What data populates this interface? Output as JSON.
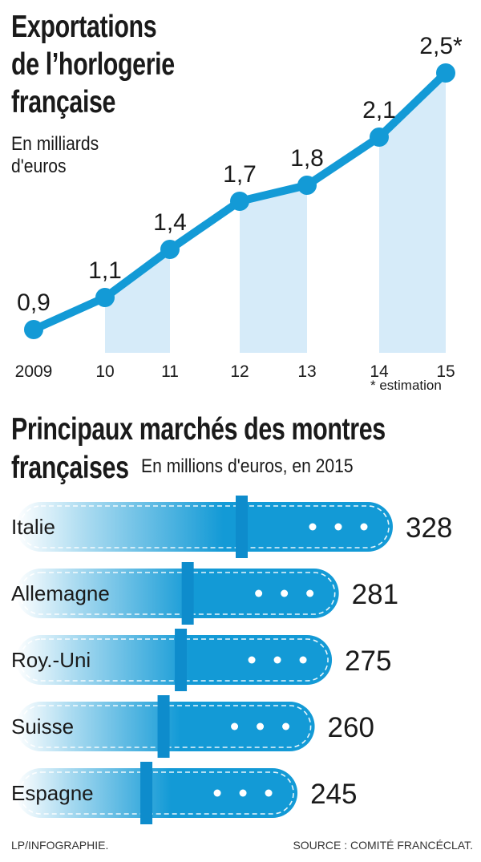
{
  "chart_data": [
    {
      "type": "line",
      "title": "Exportations de l’horlogerie française",
      "title_lines": [
        "Exportations",
        "de l’horlogerie",
        "française"
      ],
      "subtitle": "En milliards d'euros",
      "subtitle_lines": [
        "En milliards",
        "d'euros"
      ],
      "categories": [
        "2009",
        "10",
        "11",
        "12",
        "13",
        "14",
        "15"
      ],
      "values": [
        0.9,
        1.1,
        1.4,
        1.7,
        1.8,
        2.1,
        2.5
      ],
      "value_labels": [
        "0,9",
        "1,1",
        "1,4",
        "1,7",
        "1,8",
        "2,1",
        "2,5*"
      ],
      "note": "* estimation",
      "colors": {
        "line": "#139ad6",
        "fill": "#d6ebf9"
      }
    },
    {
      "type": "bar",
      "title": "Principaux marchés des montres françaises",
      "title_lines": [
        "Principaux marchés des montres",
        "françaises"
      ],
      "subtitle": "En millions d'euros, en 2015",
      "categories": [
        "Italie",
        "Allemagne",
        "Roy.-Uni",
        "Suisse",
        "Espagne"
      ],
      "values": [
        328,
        281,
        275,
        260,
        245
      ],
      "value_labels": [
        "328",
        "281",
        "275",
        "260",
        "245"
      ],
      "colors": {
        "bar": "#139ad6",
        "strap_dark": "#0e8ccc"
      }
    }
  ],
  "footer": {
    "credit": "LP/INFOGRAPHIE.",
    "source": "SOURCE : COMITÉ FRANCÉCLAT."
  }
}
